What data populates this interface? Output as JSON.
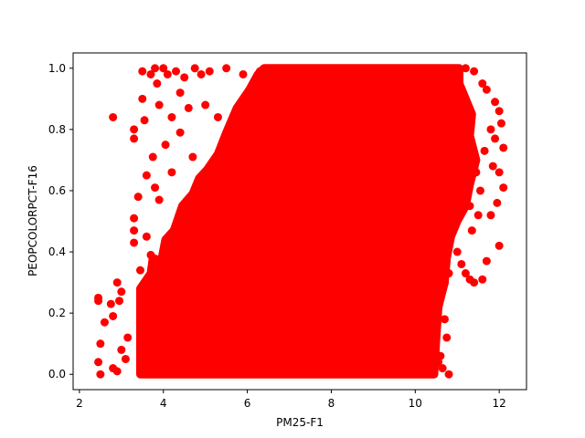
{
  "chart_data": {
    "type": "scatter",
    "title": "",
    "xlabel": "PM25-F1",
    "ylabel": "PEOPCOLORPCT-F16",
    "xlim": [
      1.85,
      12.65
    ],
    "ylim": [
      -0.05,
      1.05
    ],
    "xticks": [
      2,
      4,
      6,
      8,
      10,
      12
    ],
    "yticks": [
      0.0,
      0.2,
      0.4,
      0.6,
      0.8,
      1.0
    ],
    "grid": false,
    "legend": "none",
    "point_color": "#ff0000",
    "series": [
      {
        "points": [
          [
            2.45,
            0.25
          ],
          [
            2.45,
            0.24
          ],
          [
            2.5,
            0.1
          ],
          [
            2.45,
            0.04
          ],
          [
            2.5,
            0.0
          ],
          [
            2.6,
            0.17
          ],
          [
            2.8,
            0.84
          ],
          [
            2.75,
            0.23
          ],
          [
            2.8,
            0.19
          ],
          [
            2.9,
            0.3
          ],
          [
            3.0,
            0.27
          ],
          [
            2.95,
            0.24
          ],
          [
            2.8,
            0.02
          ],
          [
            2.9,
            0.01
          ],
          [
            3.0,
            0.08
          ],
          [
            3.1,
            0.05
          ],
          [
            3.15,
            0.12
          ],
          [
            3.3,
            0.8
          ],
          [
            3.3,
            0.77
          ],
          [
            3.3,
            0.51
          ],
          [
            3.3,
            0.47
          ],
          [
            3.3,
            0.43
          ],
          [
            3.4,
            0.58
          ],
          [
            3.5,
            0.9
          ],
          [
            3.5,
            0.99
          ],
          [
            3.55,
            0.83
          ],
          [
            3.6,
            0.65
          ],
          [
            3.6,
            0.45
          ],
          [
            3.45,
            0.34
          ],
          [
            3.5,
            0.2
          ],
          [
            3.6,
            0.28
          ],
          [
            3.55,
            0.03
          ],
          [
            3.7,
            0.98
          ],
          [
            3.8,
            1.0
          ],
          [
            3.85,
            0.95
          ],
          [
            3.9,
            0.88
          ],
          [
            3.75,
            0.71
          ],
          [
            3.8,
            0.61
          ],
          [
            3.9,
            0.57
          ],
          [
            3.7,
            0.39
          ],
          [
            3.95,
            0.33
          ],
          [
            4.0,
            1.0
          ],
          [
            4.1,
            0.98
          ],
          [
            4.05,
            0.75
          ],
          [
            4.2,
            0.84
          ],
          [
            4.3,
            0.99
          ],
          [
            4.2,
            0.66
          ],
          [
            4.4,
            0.92
          ],
          [
            4.5,
            0.97
          ],
          [
            4.4,
            0.79
          ],
          [
            4.6,
            0.87
          ],
          [
            4.75,
            1.0
          ],
          [
            4.7,
            0.71
          ],
          [
            4.9,
            0.98
          ],
          [
            4.85,
            0.62
          ],
          [
            5.0,
            0.88
          ],
          [
            5.1,
            0.99
          ],
          [
            5.3,
            0.84
          ],
          [
            5.5,
            1.0
          ],
          [
            5.6,
            0.79
          ],
          [
            5.9,
            0.98
          ],
          [
            6.05,
            0.9
          ],
          [
            6.3,
            0.99
          ],
          [
            11.2,
            1.0
          ],
          [
            11.4,
            0.99
          ],
          [
            11.6,
            0.95
          ],
          [
            11.7,
            0.93
          ],
          [
            11.9,
            0.89
          ],
          [
            12.0,
            0.86
          ],
          [
            12.05,
            0.82
          ],
          [
            11.8,
            0.8
          ],
          [
            11.9,
            0.77
          ],
          [
            12.1,
            0.74
          ],
          [
            11.85,
            0.68
          ],
          [
            12.0,
            0.66
          ],
          [
            12.1,
            0.61
          ],
          [
            11.95,
            0.56
          ],
          [
            11.8,
            0.52
          ],
          [
            12.0,
            0.42
          ],
          [
            11.7,
            0.37
          ],
          [
            11.6,
            0.31
          ],
          [
            11.4,
            0.3
          ],
          [
            11.3,
            0.31
          ],
          [
            11.2,
            0.33
          ],
          [
            11.0,
            0.4
          ],
          [
            11.1,
            0.36
          ],
          [
            10.8,
            0.33
          ],
          [
            10.7,
            0.3
          ],
          [
            10.5,
            0.28
          ],
          [
            10.6,
            0.25
          ],
          [
            10.7,
            0.18
          ],
          [
            10.75,
            0.12
          ],
          [
            10.6,
            0.06
          ],
          [
            10.8,
            0.0
          ],
          [
            10.65,
            0.02
          ],
          [
            10.55,
            0.04
          ],
          [
            11.5,
            0.52
          ],
          [
            11.55,
            0.6
          ],
          [
            11.3,
            0.55
          ],
          [
            11.45,
            0.66
          ],
          [
            11.65,
            0.73
          ],
          [
            11.35,
            0.47
          ]
        ]
      }
    ]
  }
}
